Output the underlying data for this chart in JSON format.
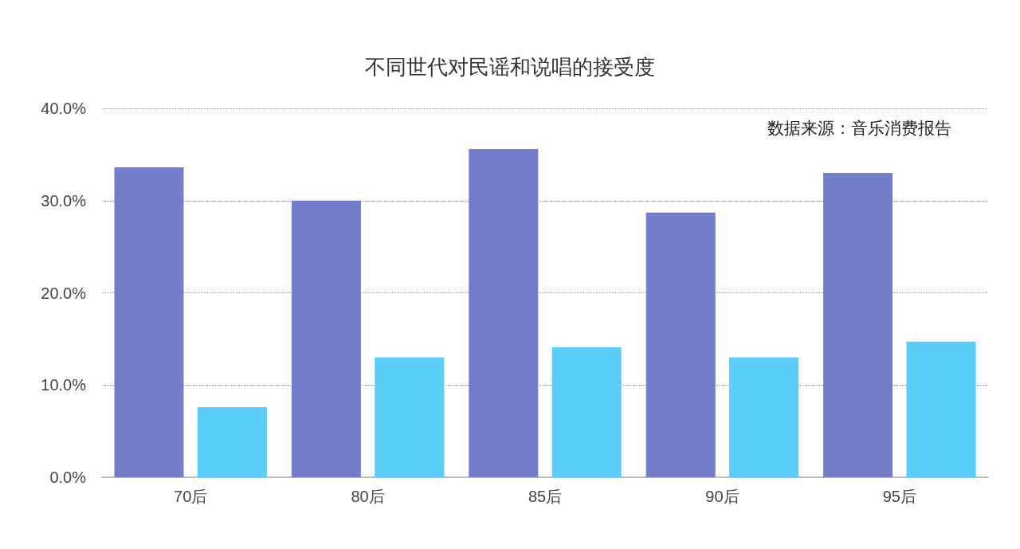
{
  "chart_data": {
    "type": "bar",
    "title": "不同世代对民谣和说唱的接受度",
    "annotations": [
      "数据来源：音乐消费报告"
    ],
    "categories": [
      "70后",
      "80后",
      "85后",
      "90后",
      "95后"
    ],
    "series": [
      {
        "color": "#737dc9",
        "values": [
          33.6,
          30.0,
          35.6,
          28.7,
          33.0
        ]
      },
      {
        "color": "#5bcdf9",
        "values": [
          7.6,
          13.0,
          14.1,
          13.0,
          14.7
        ]
      }
    ],
    "ylim": [
      0,
      40
    ],
    "yticks": [
      {
        "value": 0,
        "label": "0.0%"
      },
      {
        "value": 10,
        "label": "10.0%"
      },
      {
        "value": 20,
        "label": "20.0%"
      },
      {
        "value": 30,
        "label": "30.0%"
      },
      {
        "value": 40,
        "label": "40.0%"
      }
    ],
    "grid": "y"
  }
}
